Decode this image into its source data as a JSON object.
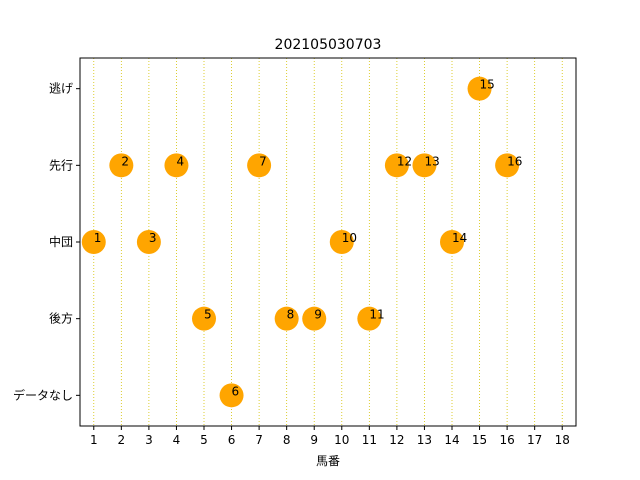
{
  "chart_data": {
    "type": "scatter",
    "title": "202105030703",
    "xlabel": "馬番",
    "ylabel": "",
    "xlim": [
      0.5,
      18.5
    ],
    "x_ticks": [
      1,
      2,
      3,
      4,
      5,
      6,
      7,
      8,
      9,
      10,
      11,
      12,
      13,
      14,
      15,
      16,
      17,
      18
    ],
    "y_categories": [
      "データなし",
      "後方",
      "中団",
      "先行",
      "逃げ"
    ],
    "grid": "vertical-dotted",
    "points": [
      {
        "x": 1,
        "y": "中団",
        "label": "1"
      },
      {
        "x": 2,
        "y": "先行",
        "label": "2"
      },
      {
        "x": 3,
        "y": "中団",
        "label": "3"
      },
      {
        "x": 4,
        "y": "先行",
        "label": "4"
      },
      {
        "x": 5,
        "y": "後方",
        "label": "5"
      },
      {
        "x": 6,
        "y": "データなし",
        "label": "6"
      },
      {
        "x": 7,
        "y": "先行",
        "label": "7"
      },
      {
        "x": 8,
        "y": "後方",
        "label": "8"
      },
      {
        "x": 9,
        "y": "後方",
        "label": "9"
      },
      {
        "x": 10,
        "y": "中団",
        "label": "10"
      },
      {
        "x": 11,
        "y": "後方",
        "label": "11"
      },
      {
        "x": 12,
        "y": "先行",
        "label": "12"
      },
      {
        "x": 13,
        "y": "先行",
        "label": "13"
      },
      {
        "x": 14,
        "y": "中団",
        "label": "14"
      },
      {
        "x": 15,
        "y": "逃げ",
        "label": "15"
      },
      {
        "x": 16,
        "y": "先行",
        "label": "16"
      }
    ],
    "colors": {
      "point": "#ffa500",
      "grid": "#d4c200",
      "axis": "#000000"
    }
  }
}
